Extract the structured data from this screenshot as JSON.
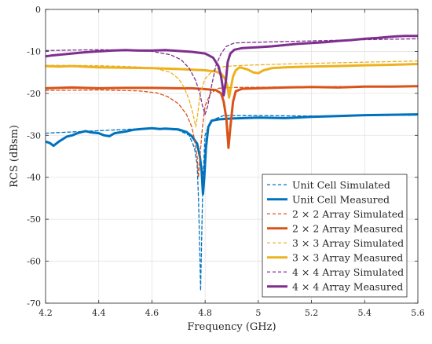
{
  "chart_data": {
    "type": "line",
    "title": "",
    "xlabel": "Frequency (GHz)",
    "ylabel": "RCS (dBsm)",
    "xlim": [
      4.2,
      5.6
    ],
    "ylim": [
      -70,
      0
    ],
    "x_ticks": [
      4.2,
      4.4,
      4.6,
      4.8,
      5,
      5.2,
      5.4,
      5.6
    ],
    "x_tick_labels": [
      "4.2",
      "4.4",
      "4.6",
      "4.8",
      "5",
      "5.2",
      "5.4",
      "5.6"
    ],
    "y_ticks": [
      -70,
      -60,
      -50,
      -40,
      -30,
      -20,
      -10,
      0
    ],
    "y_tick_labels": [
      "-70",
      "-60",
      "-50",
      "-40",
      "-30",
      "-20",
      "-10",
      "0"
    ],
    "grid": true,
    "legend_position": "bottom-right",
    "series": [
      {
        "name": "Unit Cell Simulated",
        "color": "#0072BD",
        "style": "dashed",
        "points": [
          [
            4.2,
            -29.5
          ],
          [
            4.4,
            -28.9
          ],
          [
            4.6,
            -28.3
          ],
          [
            4.7,
            -28.8
          ],
          [
            4.74,
            -30
          ],
          [
            4.76,
            -33
          ],
          [
            4.77,
            -37
          ],
          [
            4.775,
            -45
          ],
          [
            4.78,
            -58
          ],
          [
            4.783,
            -67
          ],
          [
            4.787,
            -55
          ],
          [
            4.792,
            -40
          ],
          [
            4.8,
            -30
          ],
          [
            4.82,
            -26.5
          ],
          [
            4.87,
            -25.3
          ],
          [
            5,
            -25.3
          ],
          [
            5.2,
            -25.4
          ],
          [
            5.4,
            -25.3
          ],
          [
            5.6,
            -25.2
          ]
        ]
      },
      {
        "name": "Unit Cell Measured",
        "color": "#0072BD",
        "style": "solid",
        "points": [
          [
            4.2,
            -31.5
          ],
          [
            4.215,
            -31.8
          ],
          [
            4.23,
            -32.5
          ],
          [
            4.25,
            -31.5
          ],
          [
            4.28,
            -30.3
          ],
          [
            4.3,
            -30
          ],
          [
            4.32,
            -29.5
          ],
          [
            4.35,
            -29
          ],
          [
            4.37,
            -29.3
          ],
          [
            4.4,
            -29.5
          ],
          [
            4.42,
            -30
          ],
          [
            4.44,
            -30.2
          ],
          [
            4.46,
            -29.5
          ],
          [
            4.48,
            -29.3
          ],
          [
            4.5,
            -29.1
          ],
          [
            4.53,
            -28.7
          ],
          [
            4.56,
            -28.5
          ],
          [
            4.6,
            -28.3
          ],
          [
            4.63,
            -28.5
          ],
          [
            4.65,
            -28.4
          ],
          [
            4.7,
            -28.6
          ],
          [
            4.73,
            -29.2
          ],
          [
            4.75,
            -30.2
          ],
          [
            4.77,
            -32
          ],
          [
            4.78,
            -35
          ],
          [
            4.787,
            -38.5
          ],
          [
            4.792,
            -44
          ],
          [
            4.797,
            -40
          ],
          [
            4.803,
            -33
          ],
          [
            4.812,
            -28
          ],
          [
            4.825,
            -26.5
          ],
          [
            4.85,
            -26.2
          ],
          [
            4.9,
            -26
          ],
          [
            5,
            -25.8
          ],
          [
            5.1,
            -25.9
          ],
          [
            5.2,
            -25.6
          ],
          [
            5.3,
            -25.4
          ],
          [
            5.4,
            -25.2
          ],
          [
            5.5,
            -25.1
          ],
          [
            5.6,
            -25
          ]
        ]
      },
      {
        "name": "2 × 2 Array Simulated",
        "color": "#D95319",
        "style": "dashed",
        "points": [
          [
            4.2,
            -19.3
          ],
          [
            4.4,
            -19.2
          ],
          [
            4.55,
            -19.4
          ],
          [
            4.62,
            -19.9
          ],
          [
            4.66,
            -20.8
          ],
          [
            4.7,
            -22.5
          ],
          [
            4.73,
            -25
          ],
          [
            4.75,
            -28
          ],
          [
            4.76,
            -31
          ],
          [
            4.77,
            -35
          ],
          [
            4.775,
            -40
          ],
          [
            4.782,
            -34
          ],
          [
            4.79,
            -28
          ],
          [
            4.8,
            -23
          ],
          [
            4.82,
            -20
          ],
          [
            4.85,
            -18.8
          ],
          [
            4.9,
            -18.6
          ],
          [
            5.1,
            -18.5
          ],
          [
            5.3,
            -18.4
          ],
          [
            5.6,
            -18.3
          ]
        ]
      },
      {
        "name": "2 × 2 Array Measured",
        "color": "#D95319",
        "style": "solid",
        "points": [
          [
            4.2,
            -18.8
          ],
          [
            4.3,
            -18.6
          ],
          [
            4.4,
            -18.8
          ],
          [
            4.5,
            -18.7
          ],
          [
            4.6,
            -18.7
          ],
          [
            4.7,
            -18.8
          ],
          [
            4.75,
            -18.8
          ],
          [
            4.8,
            -19
          ],
          [
            4.84,
            -19.2
          ],
          [
            4.86,
            -20
          ],
          [
            4.87,
            -22
          ],
          [
            4.88,
            -26
          ],
          [
            4.888,
            -33
          ],
          [
            4.895,
            -28
          ],
          [
            4.905,
            -22
          ],
          [
            4.915,
            -19.5
          ],
          [
            4.94,
            -18.9
          ],
          [
            5,
            -18.8
          ],
          [
            5.1,
            -18.6
          ],
          [
            5.2,
            -18.5
          ],
          [
            5.3,
            -18.6
          ],
          [
            5.4,
            -18.4
          ],
          [
            5.5,
            -18.4
          ],
          [
            5.6,
            -18.3
          ]
        ]
      },
      {
        "name": "3 × 3 Array Simulated",
        "color": "#EDB120",
        "style": "dashed",
        "points": [
          [
            4.2,
            -13.3
          ],
          [
            4.4,
            -13.4
          ],
          [
            4.55,
            -13.7
          ],
          [
            4.62,
            -14.2
          ],
          [
            4.67,
            -15
          ],
          [
            4.7,
            -16.5
          ],
          [
            4.72,
            -18.5
          ],
          [
            4.74,
            -21.5
          ],
          [
            4.755,
            -25
          ],
          [
            4.765,
            -28
          ],
          [
            4.772,
            -25
          ],
          [
            4.782,
            -20
          ],
          [
            4.8,
            -16.5
          ],
          [
            4.83,
            -14.5
          ],
          [
            4.87,
            -13.6
          ],
          [
            4.95,
            -13.3
          ],
          [
            5.1,
            -13
          ],
          [
            5.3,
            -12.7
          ],
          [
            5.6,
            -12.3
          ]
        ]
      },
      {
        "name": "3 × 3 Array Measured",
        "color": "#EDB120",
        "style": "solid",
        "points": [
          [
            4.2,
            -13.5
          ],
          [
            4.25,
            -13.6
          ],
          [
            4.3,
            -13.5
          ],
          [
            4.4,
            -13.8
          ],
          [
            4.5,
            -13.9
          ],
          [
            4.6,
            -14
          ],
          [
            4.7,
            -14.2
          ],
          [
            4.76,
            -14.4
          ],
          [
            4.8,
            -14.5
          ],
          [
            4.84,
            -14.8
          ],
          [
            4.86,
            -15.3
          ],
          [
            4.875,
            -16.5
          ],
          [
            4.885,
            -18.5
          ],
          [
            4.89,
            -21
          ],
          [
            4.896,
            -19
          ],
          [
            4.905,
            -16
          ],
          [
            4.915,
            -14.5
          ],
          [
            4.93,
            -13.8
          ],
          [
            4.96,
            -14.3
          ],
          [
            4.98,
            -15
          ],
          [
            5,
            -15.2
          ],
          [
            5.02,
            -14.5
          ],
          [
            5.05,
            -14
          ],
          [
            5.1,
            -13.8
          ],
          [
            5.2,
            -13.6
          ],
          [
            5.3,
            -13.5
          ],
          [
            5.4,
            -13.3
          ],
          [
            5.5,
            -13.2
          ],
          [
            5.6,
            -13
          ]
        ]
      },
      {
        "name": "4 × 4 Array Simulated",
        "color": "#7E2F8E",
        "style": "dashed",
        "points": [
          [
            4.2,
            -9.8
          ],
          [
            4.3,
            -9.7
          ],
          [
            4.4,
            -9.6
          ],
          [
            4.5,
            -9.7
          ],
          [
            4.6,
            -10
          ],
          [
            4.67,
            -10.8
          ],
          [
            4.71,
            -12
          ],
          [
            4.74,
            -14
          ],
          [
            4.765,
            -17
          ],
          [
            4.78,
            -20
          ],
          [
            4.79,
            -23
          ],
          [
            4.8,
            -25
          ],
          [
            4.81,
            -23
          ],
          [
            4.825,
            -18
          ],
          [
            4.84,
            -13.5
          ],
          [
            4.86,
            -10.5
          ],
          [
            4.88,
            -8.8
          ],
          [
            4.91,
            -8
          ],
          [
            5,
            -7.8
          ],
          [
            5.2,
            -7.5
          ],
          [
            5.4,
            -7.2
          ],
          [
            5.6,
            -7
          ]
        ]
      },
      {
        "name": "4 × 4 Array Measured",
        "color": "#7E2F8E",
        "style": "solid",
        "points": [
          [
            4.2,
            -11.2
          ],
          [
            4.22,
            -11
          ],
          [
            4.25,
            -10.8
          ],
          [
            4.3,
            -10.5
          ],
          [
            4.35,
            -10.2
          ],
          [
            4.4,
            -10
          ],
          [
            4.45,
            -9.8
          ],
          [
            4.5,
            -9.7
          ],
          [
            4.55,
            -9.8
          ],
          [
            4.6,
            -9.8
          ],
          [
            4.65,
            -9.7
          ],
          [
            4.7,
            -9.9
          ],
          [
            4.75,
            -10.1
          ],
          [
            4.8,
            -10.5
          ],
          [
            4.83,
            -11.5
          ],
          [
            4.85,
            -13.5
          ],
          [
            4.86,
            -16
          ],
          [
            4.866,
            -18.5
          ],
          [
            4.87,
            -20.5
          ],
          [
            4.878,
            -17
          ],
          [
            4.885,
            -12.5
          ],
          [
            4.895,
            -10.5
          ],
          [
            4.91,
            -9.6
          ],
          [
            4.94,
            -9.2
          ],
          [
            5,
            -9
          ],
          [
            5.05,
            -8.8
          ],
          [
            5.1,
            -8.5
          ],
          [
            5.15,
            -8.2
          ],
          [
            5.2,
            -8
          ],
          [
            5.25,
            -7.8
          ],
          [
            5.3,
            -7.5
          ],
          [
            5.35,
            -7.3
          ],
          [
            5.4,
            -7
          ],
          [
            5.45,
            -6.8
          ],
          [
            5.5,
            -6.5
          ],
          [
            5.55,
            -6.3
          ],
          [
            5.6,
            -6.3
          ]
        ]
      }
    ]
  }
}
